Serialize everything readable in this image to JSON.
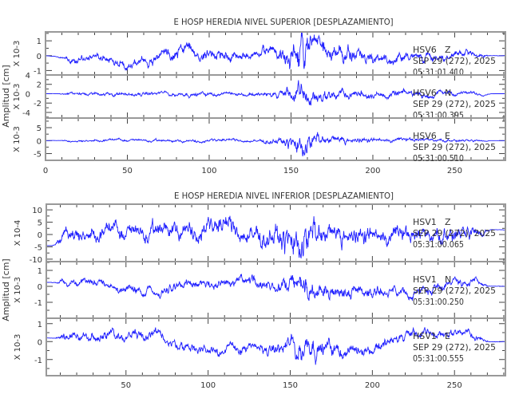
{
  "chart_data": [
    {
      "type": "line",
      "title": "E HOSP HEREDIA NIVEL SUPERIOR [DESPLAZAMIENTO]",
      "ylabel": "Amplitud [cm]",
      "xlim": [
        0,
        281
      ],
      "xticks": [
        0,
        50,
        100,
        150,
        200,
        250
      ],
      "traces": [
        {
          "station": "HSV6",
          "component": "Z",
          "date": "SEP 29 (272), 2025",
          "time": "05:31:01.410",
          "scale": "X 10-3",
          "ylim": [
            -1.3,
            1.6
          ],
          "yticks": [
            -1,
            0,
            1
          ],
          "seed": 11,
          "envelope": [
            [
              0,
              0
            ],
            [
              8,
              0.05
            ],
            [
              15,
              0.35
            ],
            [
              60,
              0.45
            ],
            [
              80,
              0.6
            ],
            [
              130,
              0.45
            ],
            [
              145,
              0.8
            ],
            [
              157,
              1.6
            ],
            [
              170,
              1.0
            ],
            [
              200,
              0.5
            ],
            [
              230,
              0.45
            ],
            [
              265,
              0.3
            ],
            [
              272,
              0.02
            ],
            [
              281,
              0.02
            ]
          ],
          "trend": [
            [
              0,
              0
            ],
            [
              30,
              -0.3
            ],
            [
              65,
              -0.4
            ],
            [
              78,
              0.6
            ],
            [
              100,
              0.1
            ],
            [
              140,
              0
            ],
            [
              281,
              0
            ]
          ]
        },
        {
          "station": "HSV6",
          "component": "N",
          "date": "SEP 29 (272), 2025",
          "time": "05:31:00.395",
          "scale": "X 10-3",
          "ylim": [
            -5.2,
            4
          ],
          "yticks": [
            -4,
            -2,
            0,
            2,
            4
          ],
          "seed": 23,
          "envelope": [
            [
              0,
              0
            ],
            [
              8,
              0.1
            ],
            [
              15,
              0.5
            ],
            [
              130,
              0.6
            ],
            [
              145,
              1.2
            ],
            [
              157,
              3.5
            ],
            [
              168,
              1.8
            ],
            [
              200,
              1.0
            ],
            [
              230,
              0.8
            ],
            [
              265,
              0.5
            ],
            [
              272,
              0.02
            ],
            [
              281,
              0.02
            ]
          ],
          "trend": [
            [
              0,
              0
            ],
            [
              281,
              0
            ]
          ]
        },
        {
          "station": "HSV6",
          "component": "E",
          "date": "SEP 29 (272), 2025",
          "time": "05:31:00.510",
          "scale": "X 10-3",
          "ylim": [
            -7.6,
            8.7
          ],
          "yticks": [
            -5,
            0,
            5
          ],
          "seed": 37,
          "envelope": [
            [
              0,
              0
            ],
            [
              8,
              0.1
            ],
            [
              15,
              0.6
            ],
            [
              130,
              0.8
            ],
            [
              145,
              1.8
            ],
            [
              157,
              6.5
            ],
            [
              168,
              2.5
            ],
            [
              200,
              1.2
            ],
            [
              230,
              0.9
            ],
            [
              265,
              0.6
            ],
            [
              272,
              0.02
            ],
            [
              281,
              0.02
            ]
          ],
          "trend": [
            [
              0,
              0
            ],
            [
              281,
              0
            ]
          ]
        }
      ]
    },
    {
      "type": "line",
      "title": "E HOSP HEREDIA NIVEL INFERIOR [DESPLAZAMIENTO]",
      "ylabel": "Amplitud [cm]",
      "xlim": [
        1.5,
        281
      ],
      "xticks": [
        50,
        100,
        150,
        200,
        250
      ],
      "traces": [
        {
          "station": "HSV1",
          "component": "Z",
          "date": "SEP 29 (272), 2025",
          "time": "05:31:00.065",
          "scale": "X 10-4",
          "ylim": [
            -11,
            12.3
          ],
          "yticks": [
            -10,
            -5,
            0,
            5,
            10
          ],
          "seed": 51,
          "envelope": [
            [
              1.5,
              0
            ],
            [
              7,
              0.3
            ],
            [
              12,
              4
            ],
            [
              100,
              5
            ],
            [
              140,
              6
            ],
            [
              157,
              10
            ],
            [
              170,
              6
            ],
            [
              230,
              4.5
            ],
            [
              262,
              4
            ],
            [
              272,
              0.1
            ],
            [
              281,
              0.1
            ]
          ],
          "trend": [
            [
              1.5,
              -4.5
            ],
            [
              10,
              -4.5
            ],
            [
              20,
              0
            ],
            [
              60,
              0
            ],
            [
              75,
              3
            ],
            [
              110,
              2
            ],
            [
              140,
              0
            ],
            [
              230,
              -2
            ],
            [
              270,
              2
            ],
            [
              281,
              2
            ]
          ]
        },
        {
          "station": "HSV1",
          "component": "N",
          "date": "SEP 29 (272), 2025",
          "time": "05:31:00.250",
          "scale": "X 10-3",
          "ylim": [
            -2,
            1.55
          ],
          "yticks": [
            -1,
            0,
            1
          ],
          "seed": 67,
          "envelope": [
            [
              1.5,
              0
            ],
            [
              7,
              0.05
            ],
            [
              12,
              0.3
            ],
            [
              140,
              0.45
            ],
            [
              157,
              1.1
            ],
            [
              170,
              0.6
            ],
            [
              230,
              0.4
            ],
            [
              262,
              0.35
            ],
            [
              272,
              0.02
            ],
            [
              281,
              0.02
            ]
          ],
          "trend": [
            [
              1.5,
              0.25
            ],
            [
              10,
              0.25
            ],
            [
              35,
              0.4
            ],
            [
              55,
              -0.4
            ],
            [
              80,
              0.1
            ],
            [
              110,
              0.1
            ],
            [
              130,
              0
            ],
            [
              200,
              -0.2
            ],
            [
              220,
              -0.5
            ],
            [
              250,
              0.5
            ],
            [
              270,
              0
            ],
            [
              281,
              0
            ]
          ]
        },
        {
          "station": "HSV1",
          "component": "E",
          "date": "SEP 29 (272), 2025",
          "time": "05:31:00.555",
          "scale": "X 10-3",
          "ylim": [
            -1.9,
            1.3
          ],
          "yticks": [
            -1,
            0,
            1
          ],
          "seed": 79,
          "envelope": [
            [
              1.5,
              0
            ],
            [
              7,
              0.05
            ],
            [
              12,
              0.35
            ],
            [
              140,
              0.4
            ],
            [
              157,
              1.0
            ],
            [
              170,
              0.6
            ],
            [
              230,
              0.35
            ],
            [
              262,
              0.3
            ],
            [
              272,
              0.02
            ],
            [
              281,
              0.02
            ]
          ],
          "trend": [
            [
              1.5,
              0.2
            ],
            [
              10,
              0.2
            ],
            [
              40,
              0.4
            ],
            [
              60,
              0.5
            ],
            [
              80,
              -0.2
            ],
            [
              110,
              -0.5
            ],
            [
              150,
              -0.5
            ],
            [
              160,
              0
            ],
            [
              190,
              -0.6
            ],
            [
              220,
              0.4
            ],
            [
              255,
              0.6
            ],
            [
              270,
              0
            ],
            [
              281,
              0
            ]
          ]
        }
      ]
    }
  ]
}
